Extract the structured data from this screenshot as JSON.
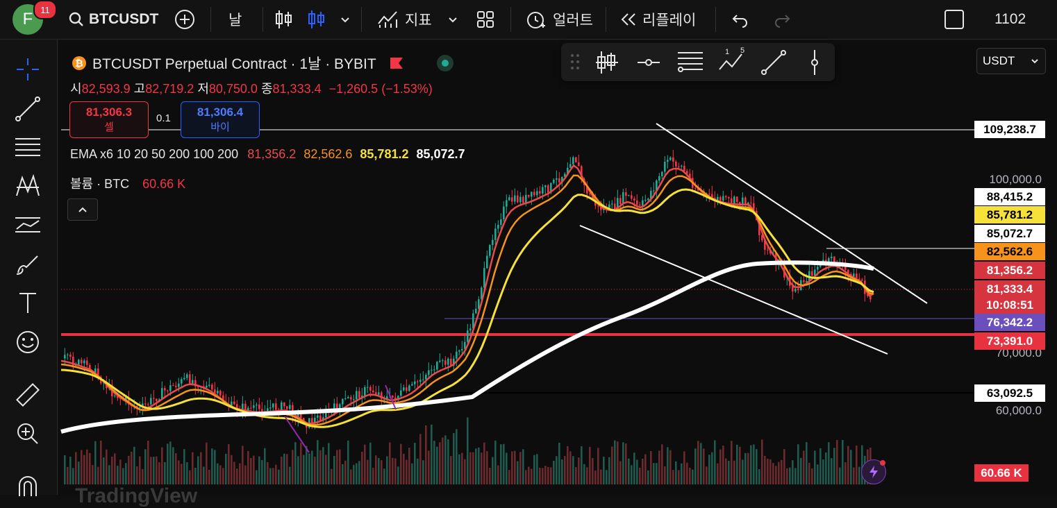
{
  "topbar": {
    "avatar_letter": "F",
    "notification_count": "11",
    "symbol": "BTCUSDT",
    "interval": "날",
    "indicators_label": "지표",
    "alert_label": "얼러트",
    "replay_label": "리플레이",
    "layout_number": "1102"
  },
  "legend": {
    "title": "BTCUSDT Perpetual Contract · 1날 · BYBIT",
    "ohlc": [
      {
        "k": "시",
        "v": "82,593.9"
      },
      {
        "k": "고",
        "v": "82,719.2"
      },
      {
        "k": "저",
        "v": "80,750.0"
      },
      {
        "k": "종",
        "v": "81,333.4"
      }
    ],
    "change": "−1,260.5 (−1.53%)",
    "sell_price": "81,306.3",
    "sell_label": "셀",
    "spread": "0.1",
    "buy_price": "81,306.4",
    "buy_label": "바이",
    "ema_label": "EMA x6 10 20 50 200 100 200",
    "ema_values": [
      "81,356.2",
      "82,562.6",
      "85,781.2",
      "85,072.7"
    ],
    "volume_label": "볼륨 · BTC",
    "volume_value": "60.66 K"
  },
  "currency_select": "USDT",
  "price_labels": [
    {
      "text": "109,238.7",
      "bg": "#ffffff",
      "fg": "#000000"
    },
    {
      "text": "88,415.2",
      "bg": "#ffffff",
      "fg": "#000000"
    },
    {
      "text": "85,781.2",
      "bg": "#f5e13a",
      "fg": "#000000"
    },
    {
      "text": "85,072.7",
      "bg": "#ffffff",
      "fg": "#000000"
    },
    {
      "text": "82,562.6",
      "bg": "#f7931a",
      "fg": "#000000"
    },
    {
      "text": "81,356.2",
      "bg": "#d6353f",
      "fg": "#ffffff"
    },
    {
      "text": "81,333.4",
      "bg": "#d6353f",
      "fg": "#ffffff"
    },
    {
      "text": "10:08:51",
      "bg": "#d6353f",
      "fg": "#ffffff"
    },
    {
      "text": "76,342.2",
      "bg": "#6b4fbf",
      "fg": "#ffffff"
    },
    {
      "text": "73,391.0",
      "bg": "#e8323f",
      "fg": "#ffffff"
    },
    {
      "text": "63,092.5",
      "bg": "#ffffff",
      "fg": "#000000"
    },
    {
      "text": "60.66 K",
      "bg": "#e8323f",
      "fg": "#ffffff"
    }
  ],
  "axis_labels": [
    "100,000.0",
    "70,000.0",
    "60,000.0"
  ],
  "colors": {
    "up": "#22ab94",
    "down": "#f23645",
    "ema_red": "#e84b4b",
    "ema_orange": "#f7931a",
    "ema_yellow": "#f5e13a",
    "ema_white": "#ffffff",
    "support_line": "#e8323f"
  },
  "watermark": "TradingView"
}
